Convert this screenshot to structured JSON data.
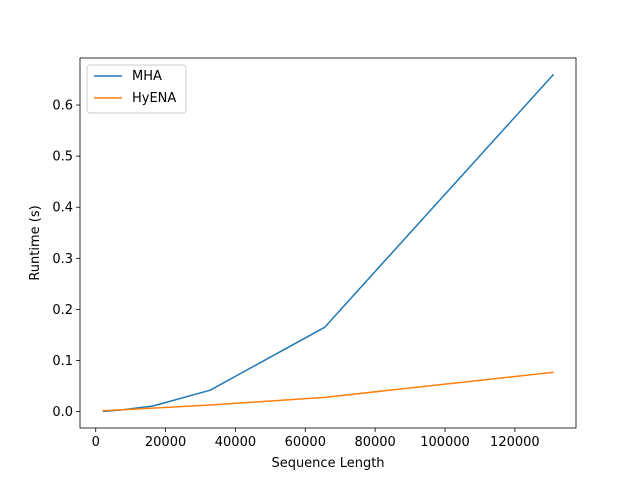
{
  "chart_data": {
    "type": "line",
    "title": "",
    "xlabel": "Sequence Length",
    "ylabel": "Runtime (s)",
    "xlim": [
      -4500,
      137500
    ],
    "ylim": [
      -0.032,
      0.692
    ],
    "xticks": [
      0,
      20000,
      40000,
      60000,
      80000,
      100000,
      120000
    ],
    "yticks": [
      0.0,
      0.1,
      0.2,
      0.3,
      0.4,
      0.5,
      0.6
    ],
    "grid": false,
    "legend_position": "top-left",
    "series": [
      {
        "name": "MHA",
        "color": "#1f77b4",
        "x": [
          2048,
          4096,
          8192,
          16384,
          32768,
          65536,
          131072
        ],
        "y": [
          0.0005,
          0.0015,
          0.004,
          0.011,
          0.042,
          0.165,
          0.66
        ]
      },
      {
        "name": "HyENA",
        "color": "#ff7f0e",
        "x": [
          2048,
          4096,
          8192,
          16384,
          32768,
          65536,
          131072
        ],
        "y": [
          0.002,
          0.0025,
          0.004,
          0.007,
          0.013,
          0.028,
          0.077
        ]
      }
    ]
  }
}
